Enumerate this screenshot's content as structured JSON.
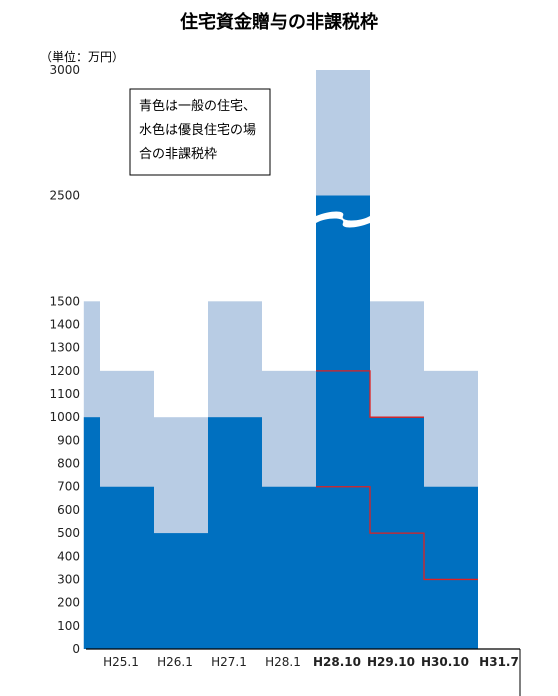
{
  "title": "住宅資金贈与の非課税枠",
  "unit_label": "（単位：万円）",
  "note_lines": [
    "青色は一般の住宅、",
    "水色は優良住宅の場",
    "合の非課税枠"
  ],
  "colors": {
    "general": "#0070C0",
    "quality": "#B8CCE4",
    "highlight_line": "#E02020",
    "axis": "#000000"
  },
  "chart_data": {
    "type": "bar",
    "title": "住宅資金贈与の非課税枠",
    "ylabel": "（単位：万円）",
    "axis_break": {
      "from": 1500,
      "to": 2500
    },
    "yticks": [
      0,
      100,
      200,
      300,
      400,
      500,
      600,
      700,
      800,
      900,
      1000,
      1100,
      1200,
      1300,
      1400,
      1500,
      2500,
      3000
    ],
    "x_ticks": [
      {
        "label": "H25.1",
        "bold": false
      },
      {
        "label": "H26.1",
        "bold": false
      },
      {
        "label": "H27.1",
        "bold": false
      },
      {
        "label": "H28.1",
        "bold": false
      },
      {
        "label": "H28.10",
        "bold": true
      },
      {
        "label": "H29.10",
        "bold": true
      },
      {
        "label": "H30.10",
        "bold": true
      },
      {
        "label": "H31.7",
        "bold": true
      }
    ],
    "segments": [
      {
        "start": -0.3,
        "end": 0,
        "general": 1000,
        "quality": 1500
      },
      {
        "start": 0,
        "end": 1,
        "general": 700,
        "quality": 1200
      },
      {
        "start": 1,
        "end": 2,
        "general": 500,
        "quality": 1000
      },
      {
        "start": 2,
        "end": 3,
        "general": 1000,
        "quality": 1500
      },
      {
        "start": 3,
        "end": 4,
        "general": 700,
        "quality": 1200
      },
      {
        "start": 4,
        "end": 5,
        "general": 2500,
        "quality": 3000
      },
      {
        "start": 5,
        "end": 6,
        "general": 1000,
        "quality": 1500
      },
      {
        "start": 6,
        "end": 7,
        "general": 700,
        "quality": 1200
      }
    ],
    "highlight_steps": [
      [
        [
          4,
          1200
        ],
        [
          5,
          1200
        ],
        [
          5,
          1000
        ],
        [
          6,
          1000
        ]
      ],
      [
        [
          4,
          700
        ],
        [
          5,
          700
        ],
        [
          5,
          500
        ],
        [
          6,
          500
        ],
        [
          6,
          300
        ],
        [
          7,
          300
        ]
      ]
    ],
    "legend": "top-left box",
    "grid": false
  }
}
